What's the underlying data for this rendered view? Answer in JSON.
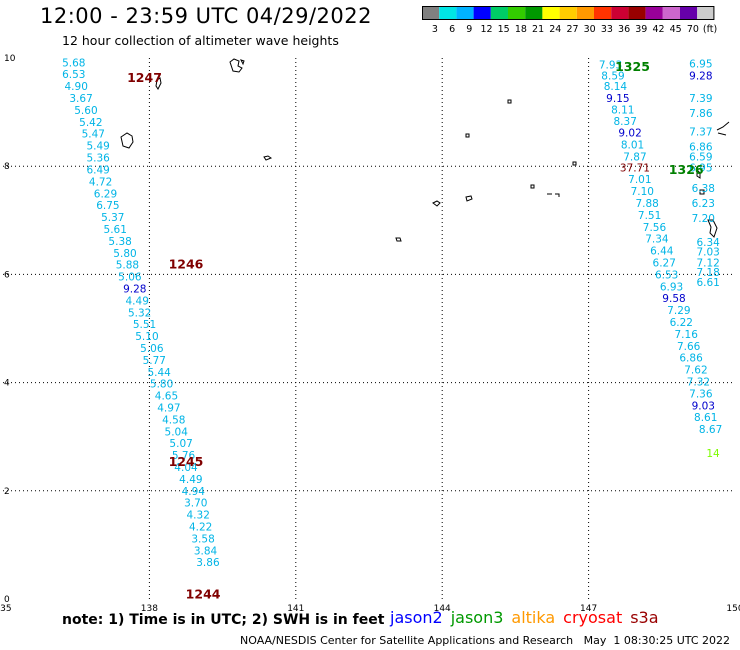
{
  "header": {
    "title": "12:00 - 23:59 UTC 04/29/2022",
    "subtitle": "12 hour collection of altimeter wave heights"
  },
  "colorbar": {
    "colors": [
      "#808080",
      "#00e5e5",
      "#00b2ff",
      "#0000ff",
      "#00cc66",
      "#33cc00",
      "#009900",
      "#ffff00",
      "#ffcc00",
      "#ff9900",
      "#ff3300",
      "#cc0033",
      "#990000",
      "#990099",
      "#cc66cc",
      "#6600aa",
      "#cccccc"
    ],
    "labels": [
      "3",
      "6",
      "9",
      "12",
      "15",
      "18",
      "21",
      "24",
      "27",
      "30",
      "33",
      "36",
      "39",
      "42",
      "45",
      "70",
      "(ft)"
    ]
  },
  "map": {
    "lon_ticks": [
      "135",
      "138",
      "141",
      "144",
      "147",
      "150"
    ],
    "lat_ticks": [
      "0",
      "2",
      "4",
      "6",
      "8",
      "10"
    ],
    "lon_range": [
      135,
      150
    ],
    "lat_range": [
      0,
      10
    ],
    "grid": "dotted",
    "colors": {
      "cyan": "#00b4e6",
      "blue": "#0000cc",
      "maroon": "#800000",
      "green": "#008000",
      "red": "#cc0000",
      "lightgreen": "#7cfc00"
    },
    "pass_labels": [
      {
        "text": "1247",
        "lon": 137.9,
        "lat": 9.65,
        "color": "maroon"
      },
      {
        "text": "1246",
        "lon": 138.75,
        "lat": 6.2,
        "color": "maroon"
      },
      {
        "text": "1245",
        "lon": 138.75,
        "lat": 2.55,
        "color": "maroon"
      },
      {
        "text": "1244",
        "lon": 139.1,
        "lat": 0.1,
        "color": "maroon"
      },
      {
        "text": "1325",
        "lon": 147.9,
        "lat": 9.85,
        "color": "green"
      },
      {
        "text": "1326",
        "lon": 149.0,
        "lat": 7.95,
        "color": "green"
      }
    ],
    "readings": [
      {
        "t": "5.68",
        "lon": 136.45,
        "lat": 9.92,
        "c": "cyan"
      },
      {
        "t": "6.53",
        "lon": 136.45,
        "lat": 9.7,
        "c": "cyan"
      },
      {
        "t": "4.90",
        "lon": 136.5,
        "lat": 9.48,
        "c": "cyan"
      },
      {
        "t": "3.67",
        "lon": 136.6,
        "lat": 9.26,
        "c": "cyan"
      },
      {
        "t": "5.60",
        "lon": 136.7,
        "lat": 9.04,
        "c": "cyan"
      },
      {
        "t": "5.42",
        "lon": 136.8,
        "lat": 8.82,
        "c": "cyan"
      },
      {
        "t": "5.47",
        "lon": 136.85,
        "lat": 8.6,
        "c": "cyan"
      },
      {
        "t": "5.49",
        "lon": 136.95,
        "lat": 8.38,
        "c": "cyan"
      },
      {
        "t": "5.36",
        "lon": 136.95,
        "lat": 8.16,
        "c": "cyan"
      },
      {
        "t": "6.49",
        "lon": 136.95,
        "lat": 7.94,
        "c": "cyan"
      },
      {
        "t": "4.72",
        "lon": 137.0,
        "lat": 7.72,
        "c": "cyan"
      },
      {
        "t": "6.29",
        "lon": 137.1,
        "lat": 7.5,
        "c": "cyan"
      },
      {
        "t": "6.75",
        "lon": 137.15,
        "lat": 7.28,
        "c": "cyan"
      },
      {
        "t": "5.37",
        "lon": 137.25,
        "lat": 7.06,
        "c": "cyan"
      },
      {
        "t": "5.61",
        "lon": 137.3,
        "lat": 6.84,
        "c": "cyan"
      },
      {
        "t": "5.38",
        "lon": 137.4,
        "lat": 6.62,
        "c": "cyan"
      },
      {
        "t": "5.80",
        "lon": 137.5,
        "lat": 6.4,
        "c": "cyan"
      },
      {
        "t": "5.88",
        "lon": 137.55,
        "lat": 6.18,
        "c": "cyan"
      },
      {
        "t": "5.06",
        "lon": 137.6,
        "lat": 5.96,
        "c": "cyan"
      },
      {
        "t": "9.28",
        "lon": 137.7,
        "lat": 5.74,
        "c": "blue"
      },
      {
        "t": "4.49",
        "lon": 137.75,
        "lat": 5.52,
        "c": "cyan"
      },
      {
        "t": "5.32",
        "lon": 137.8,
        "lat": 5.3,
        "c": "cyan"
      },
      {
        "t": "5.51",
        "lon": 137.9,
        "lat": 5.08,
        "c": "cyan"
      },
      {
        "t": "5.10",
        "lon": 137.95,
        "lat": 4.86,
        "c": "cyan"
      },
      {
        "t": "5.06",
        "lon": 138.05,
        "lat": 4.64,
        "c": "cyan"
      },
      {
        "t": "5.77",
        "lon": 138.1,
        "lat": 4.42,
        "c": "cyan"
      },
      {
        "t": "5.44",
        "lon": 138.2,
        "lat": 4.2,
        "c": "cyan"
      },
      {
        "t": "5.80",
        "lon": 138.25,
        "lat": 3.98,
        "c": "cyan"
      },
      {
        "t": "4.65",
        "lon": 138.35,
        "lat": 3.76,
        "c": "cyan"
      },
      {
        "t": "4.97",
        "lon": 138.4,
        "lat": 3.54,
        "c": "cyan"
      },
      {
        "t": "4.58",
        "lon": 138.5,
        "lat": 3.32,
        "c": "cyan"
      },
      {
        "t": "5.04",
        "lon": 138.55,
        "lat": 3.1,
        "c": "cyan"
      },
      {
        "t": "5.07",
        "lon": 138.65,
        "lat": 2.88,
        "c": "cyan"
      },
      {
        "t": "5.76",
        "lon": 138.7,
        "lat": 2.66,
        "c": "cyan"
      },
      {
        "t": "4.04",
        "lon": 138.75,
        "lat": 2.44,
        "c": "cyan"
      },
      {
        "t": "4.49",
        "lon": 138.85,
        "lat": 2.22,
        "c": "cyan"
      },
      {
        "t": "4.94",
        "lon": 138.9,
        "lat": 2.0,
        "c": "cyan"
      },
      {
        "t": "3.70",
        "lon": 138.95,
        "lat": 1.78,
        "c": "cyan"
      },
      {
        "t": "4.32",
        "lon": 139.0,
        "lat": 1.56,
        "c": "cyan"
      },
      {
        "t": "4.22",
        "lon": 139.05,
        "lat": 1.34,
        "c": "cyan"
      },
      {
        "t": "3.58",
        "lon": 139.1,
        "lat": 1.12,
        "c": "cyan"
      },
      {
        "t": "3.84",
        "lon": 139.15,
        "lat": 0.9,
        "c": "cyan"
      },
      {
        "t": "3.86",
        "lon": 139.2,
        "lat": 0.68,
        "c": "cyan"
      },
      {
        "t": "7.93",
        "lon": 147.45,
        "lat": 9.88,
        "c": "cyan"
      },
      {
        "t": "8.59",
        "lon": 147.5,
        "lat": 9.68,
        "c": "cyan"
      },
      {
        "t": "8.14",
        "lon": 147.55,
        "lat": 9.48,
        "c": "cyan"
      },
      {
        "t": "9.15",
        "lon": 147.6,
        "lat": 9.26,
        "c": "blue"
      },
      {
        "t": "8.11",
        "lon": 147.7,
        "lat": 9.05,
        "c": "cyan"
      },
      {
        "t": "8.37",
        "lon": 147.75,
        "lat": 8.84,
        "c": "cyan"
      },
      {
        "t": "9.02",
        "lon": 147.85,
        "lat": 8.62,
        "c": "blue"
      },
      {
        "t": "8.01",
        "lon": 147.9,
        "lat": 8.4,
        "c": "cyan"
      },
      {
        "t": "7.87",
        "lon": 147.95,
        "lat": 8.18,
        "c": "cyan"
      },
      {
        "t": "37.71",
        "lon": 147.95,
        "lat": 7.98,
        "c": "maroon"
      },
      {
        "t": "7.01",
        "lon": 148.05,
        "lat": 7.76,
        "c": "cyan"
      },
      {
        "t": "7.10",
        "lon": 148.1,
        "lat": 7.54,
        "c": "cyan"
      },
      {
        "t": "7.88",
        "lon": 148.2,
        "lat": 7.32,
        "c": "cyan"
      },
      {
        "t": "7.51",
        "lon": 148.25,
        "lat": 7.1,
        "c": "cyan"
      },
      {
        "t": "7.56",
        "lon": 148.35,
        "lat": 6.88,
        "c": "cyan"
      },
      {
        "t": "7.34",
        "lon": 148.4,
        "lat": 6.66,
        "c": "cyan"
      },
      {
        "t": "6.44",
        "lon": 148.5,
        "lat": 6.44,
        "c": "cyan"
      },
      {
        "t": "6.27",
        "lon": 148.55,
        "lat": 6.22,
        "c": "cyan"
      },
      {
        "t": "6.53",
        "lon": 148.6,
        "lat": 6.0,
        "c": "cyan"
      },
      {
        "t": "6.93",
        "lon": 148.7,
        "lat": 5.78,
        "c": "cyan"
      },
      {
        "t": "9.58",
        "lon": 148.75,
        "lat": 5.56,
        "c": "blue"
      },
      {
        "t": "7.29",
        "lon": 148.85,
        "lat": 5.34,
        "c": "cyan"
      },
      {
        "t": "6.22",
        "lon": 148.9,
        "lat": 5.12,
        "c": "cyan"
      },
      {
        "t": "7.16",
        "lon": 149.0,
        "lat": 4.9,
        "c": "cyan"
      },
      {
        "t": "7.66",
        "lon": 149.05,
        "lat": 4.68,
        "c": "cyan"
      },
      {
        "t": "6.86",
        "lon": 149.1,
        "lat": 4.46,
        "c": "cyan"
      },
      {
        "t": "7.62",
        "lon": 149.2,
        "lat": 4.24,
        "c": "cyan"
      },
      {
        "t": "7.32",
        "lon": 149.25,
        "lat": 4.02,
        "c": "cyan"
      },
      {
        "t": "7.36",
        "lon": 149.3,
        "lat": 3.8,
        "c": "cyan"
      },
      {
        "t": "9.03",
        "lon": 149.35,
        "lat": 3.58,
        "c": "blue"
      },
      {
        "t": "8.61",
        "lon": 149.4,
        "lat": 3.36,
        "c": "cyan"
      },
      {
        "t": "8.67",
        "lon": 149.5,
        "lat": 3.14,
        "c": "cyan"
      },
      {
        "t": "6.95",
        "lon": 149.3,
        "lat": 9.9,
        "c": "cyan"
      },
      {
        "t": "9.28",
        "lon": 149.3,
        "lat": 9.68,
        "c": "blue"
      },
      {
        "t": "7.39",
        "lon": 149.3,
        "lat": 9.26,
        "c": "cyan"
      },
      {
        "t": "7.86",
        "lon": 149.3,
        "lat": 8.98,
        "c": "cyan"
      },
      {
        "t": "7.37",
        "lon": 149.3,
        "lat": 8.64,
        "c": "cyan"
      },
      {
        "t": "6.86",
        "lon": 149.3,
        "lat": 8.36,
        "c": "cyan"
      },
      {
        "t": "6.59",
        "lon": 149.3,
        "lat": 8.18,
        "c": "cyan"
      },
      {
        "t": "6.95",
        "lon": 149.3,
        "lat": 7.98,
        "c": "cyan"
      },
      {
        "t": "6.38",
        "lon": 149.35,
        "lat": 7.6,
        "c": "cyan"
      },
      {
        "t": "6.23",
        "lon": 149.35,
        "lat": 7.32,
        "c": "cyan"
      },
      {
        "t": "7.20",
        "lon": 149.35,
        "lat": 7.04,
        "c": "cyan"
      },
      {
        "t": "6.34",
        "lon": 149.45,
        "lat": 6.6,
        "c": "cyan"
      },
      {
        "t": "7.03",
        "lon": 149.45,
        "lat": 6.42,
        "c": "cyan"
      },
      {
        "t": "7.12",
        "lon": 149.45,
        "lat": 6.22,
        "c": "cyan"
      },
      {
        "t": "7.18",
        "lon": 149.45,
        "lat": 6.04,
        "c": "cyan"
      },
      {
        "t": "6.61",
        "lon": 149.45,
        "lat": 5.86,
        "c": "cyan"
      },
      {
        "t": "14",
        "lon": 149.55,
        "lat": 2.7,
        "c": "lightgreen"
      }
    ]
  },
  "legend": {
    "note": "note:  1) Time is in UTC; 2) SWH is in feet",
    "satellites": [
      {
        "name": "jason2",
        "color": "#0000ff"
      },
      {
        "name": "jason3",
        "color": "#009900"
      },
      {
        "name": "altika",
        "color": "#ff9900"
      },
      {
        "name": "cryosat",
        "color": "#ff0000"
      },
      {
        "name": "s3a",
        "color": "#990000"
      }
    ]
  },
  "footer": {
    "credit": "NOAA/NESDIS Center for Satellite Applications and Research   May  1 08:30:25 UTC 2022"
  }
}
